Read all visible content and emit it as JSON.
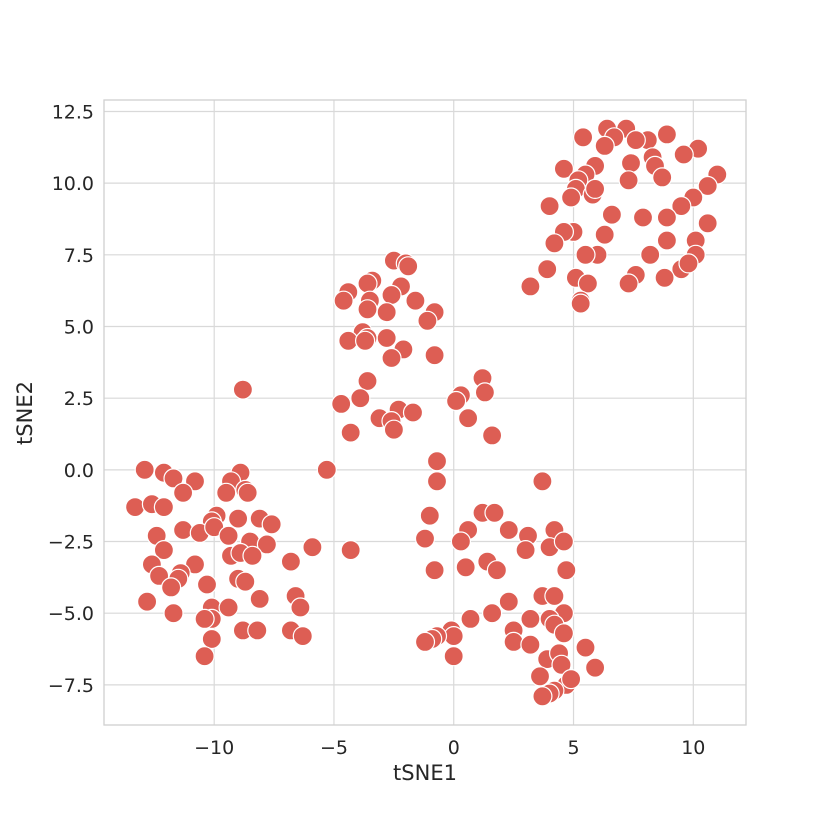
{
  "chart_data": {
    "type": "scatter",
    "title": "",
    "xlabel": "tSNE1",
    "ylabel": "tSNE2",
    "xlim": [
      -14.6,
      12.2
    ],
    "ylim": [
      -8.9,
      12.9
    ],
    "xticks": [
      {
        "value": -10,
        "label": "−10"
      },
      {
        "value": -5,
        "label": "−5"
      },
      {
        "value": 0,
        "label": "0"
      },
      {
        "value": 5,
        "label": "5"
      },
      {
        "value": 10,
        "label": "10"
      }
    ],
    "yticks": [
      {
        "value": -7.5,
        "label": "−7.5"
      },
      {
        "value": -5.0,
        "label": "−5.0"
      },
      {
        "value": -2.5,
        "label": "−2.5"
      },
      {
        "value": 0.0,
        "label": "0.0"
      },
      {
        "value": 2.5,
        "label": "2.5"
      },
      {
        "value": 5.0,
        "label": "5.0"
      },
      {
        "value": 7.5,
        "label": "7.5"
      },
      {
        "value": 10.0,
        "label": "10.0"
      },
      {
        "value": 12.5,
        "label": "12.5"
      }
    ],
    "grid": true,
    "legend": "none",
    "marker_color": "#dd5e54",
    "points": [
      [
        6.4,
        11.9
      ],
      [
        7.2,
        11.9
      ],
      [
        6.7,
        11.6
      ],
      [
        5.4,
        11.6
      ],
      [
        8.9,
        11.7
      ],
      [
        8.1,
        11.5
      ],
      [
        6.3,
        11.3
      ],
      [
        7.6,
        11.5
      ],
      [
        10.2,
        11.2
      ],
      [
        9.6,
        11.0
      ],
      [
        8.3,
        10.9
      ],
      [
        7.4,
        10.7
      ],
      [
        8.4,
        10.6
      ],
      [
        5.9,
        10.6
      ],
      [
        4.6,
        10.5
      ],
      [
        5.5,
        10.3
      ],
      [
        5.2,
        10.1
      ],
      [
        7.3,
        10.1
      ],
      [
        8.7,
        10.2
      ],
      [
        11.0,
        10.3
      ],
      [
        10.6,
        9.9
      ],
      [
        5.1,
        9.8
      ],
      [
        5.8,
        9.6
      ],
      [
        4.9,
        9.5
      ],
      [
        5.9,
        9.8
      ],
      [
        10.0,
        9.5
      ],
      [
        9.5,
        9.2
      ],
      [
        4.0,
        9.2
      ],
      [
        6.6,
        8.9
      ],
      [
        7.9,
        8.8
      ],
      [
        8.9,
        8.8
      ],
      [
        10.6,
        8.6
      ],
      [
        5.0,
        8.3
      ],
      [
        4.6,
        8.3
      ],
      [
        6.3,
        8.2
      ],
      [
        4.2,
        7.9
      ],
      [
        8.9,
        8.0
      ],
      [
        10.1,
        8.0
      ],
      [
        6.0,
        7.5
      ],
      [
        5.5,
        7.5
      ],
      [
        8.2,
        7.5
      ],
      [
        10.1,
        7.5
      ],
      [
        3.9,
        7.0
      ],
      [
        9.5,
        7.0
      ],
      [
        9.8,
        7.2
      ],
      [
        7.6,
        6.8
      ],
      [
        5.1,
        6.7
      ],
      [
        8.8,
        6.7
      ],
      [
        7.3,
        6.5
      ],
      [
        5.6,
        6.5
      ],
      [
        3.2,
        6.4
      ],
      [
        5.3,
        5.9
      ],
      [
        5.3,
        5.8
      ],
      [
        -2.5,
        7.3
      ],
      [
        -2.0,
        7.2
      ],
      [
        -1.9,
        7.1
      ],
      [
        -3.4,
        6.6
      ],
      [
        -3.6,
        6.5
      ],
      [
        -2.2,
        6.4
      ],
      [
        -4.4,
        6.2
      ],
      [
        -2.6,
        6.1
      ],
      [
        -4.6,
        5.9
      ],
      [
        -3.5,
        5.9
      ],
      [
        -1.6,
        5.9
      ],
      [
        -3.6,
        5.6
      ],
      [
        -2.8,
        5.5
      ],
      [
        -0.8,
        5.5
      ],
      [
        -1.1,
        5.2
      ],
      [
        -3.8,
        4.8
      ],
      [
        -3.6,
        4.6
      ],
      [
        -2.8,
        4.6
      ],
      [
        -4.4,
        4.5
      ],
      [
        -3.7,
        4.5
      ],
      [
        -2.1,
        4.2
      ],
      [
        -2.6,
        3.9
      ],
      [
        -0.8,
        4.0
      ],
      [
        -3.6,
        3.1
      ],
      [
        -3.9,
        2.5
      ],
      [
        -4.7,
        2.3
      ],
      [
        -2.3,
        2.1
      ],
      [
        -1.7,
        2.0
      ],
      [
        -3.1,
        1.8
      ],
      [
        -2.6,
        1.7
      ],
      [
        -2.5,
        1.4
      ],
      [
        -4.3,
        1.3
      ],
      [
        1.2,
        3.2
      ],
      [
        0.3,
        2.6
      ],
      [
        1.3,
        2.7
      ],
      [
        0.1,
        2.4
      ],
      [
        0.6,
        1.8
      ],
      [
        1.6,
        1.2
      ],
      [
        -8.8,
        2.8
      ],
      [
        -12.9,
        0.0
      ],
      [
        -12.1,
        -0.1
      ],
      [
        -8.9,
        -0.1
      ],
      [
        -11.7,
        -0.3
      ],
      [
        -10.8,
        -0.4
      ],
      [
        -9.3,
        -0.4
      ],
      [
        -8.7,
        -0.7
      ],
      [
        -13.3,
        -1.3
      ],
      [
        -12.6,
        -1.2
      ],
      [
        -11.3,
        -0.8
      ],
      [
        -9.5,
        -0.8
      ],
      [
        -8.6,
        -0.8
      ],
      [
        -12.1,
        -1.3
      ],
      [
        -9.9,
        -1.6
      ],
      [
        -10.1,
        -1.8
      ],
      [
        -9.0,
        -1.7
      ],
      [
        -8.1,
        -1.7
      ],
      [
        -7.6,
        -1.9
      ],
      [
        -11.3,
        -2.1
      ],
      [
        -10.6,
        -2.2
      ],
      [
        -10.0,
        -2.0
      ],
      [
        -9.4,
        -2.3
      ],
      [
        -12.4,
        -2.3
      ],
      [
        -8.5,
        -2.5
      ],
      [
        -7.8,
        -2.6
      ],
      [
        -12.1,
        -2.8
      ],
      [
        -9.3,
        -3.0
      ],
      [
        -8.9,
        -2.9
      ],
      [
        -8.4,
        -3.0
      ],
      [
        -6.8,
        -3.2
      ],
      [
        -12.6,
        -3.3
      ],
      [
        -10.8,
        -3.3
      ],
      [
        -11.4,
        -3.6
      ],
      [
        -12.3,
        -3.7
      ],
      [
        -11.5,
        -3.8
      ],
      [
        -10.3,
        -4.0
      ],
      [
        -9.0,
        -3.8
      ],
      [
        -8.7,
        -3.9
      ],
      [
        -11.8,
        -4.1
      ],
      [
        -8.1,
        -4.5
      ],
      [
        -6.6,
        -4.4
      ],
      [
        -12.8,
        -4.6
      ],
      [
        -10.1,
        -4.8
      ],
      [
        -9.4,
        -4.8
      ],
      [
        -6.4,
        -4.8
      ],
      [
        -11.7,
        -5.0
      ],
      [
        -10.1,
        -5.2
      ],
      [
        -10.4,
        -5.2
      ],
      [
        -8.8,
        -5.6
      ],
      [
        -8.2,
        -5.6
      ],
      [
        -6.8,
        -5.6
      ],
      [
        -10.1,
        -5.9
      ],
      [
        -6.3,
        -5.8
      ],
      [
        -10.4,
        -6.5
      ],
      [
        -5.9,
        -2.7
      ],
      [
        -4.3,
        -2.8
      ],
      [
        -5.3,
        0.0
      ],
      [
        -0.7,
        0.3
      ],
      [
        -0.7,
        -0.4
      ],
      [
        3.7,
        -0.4
      ],
      [
        -1.0,
        -1.6
      ],
      [
        1.2,
        -1.5
      ],
      [
        1.7,
        -1.5
      ],
      [
        0.6,
        -2.1
      ],
      [
        -1.2,
        -2.4
      ],
      [
        2.3,
        -2.1
      ],
      [
        3.1,
        -2.3
      ],
      [
        4.2,
        -2.1
      ],
      [
        0.3,
        -2.5
      ],
      [
        3.0,
        -2.8
      ],
      [
        4.0,
        -2.7
      ],
      [
        4.6,
        -2.5
      ],
      [
        1.4,
        -3.2
      ],
      [
        0.5,
        -3.4
      ],
      [
        -0.8,
        -3.5
      ],
      [
        1.8,
        -3.5
      ],
      [
        4.7,
        -3.5
      ],
      [
        3.7,
        -4.4
      ],
      [
        4.2,
        -4.4
      ],
      [
        2.3,
        -4.6
      ],
      [
        1.6,
        -5.0
      ],
      [
        4.6,
        -5.0
      ],
      [
        0.7,
        -5.2
      ],
      [
        3.2,
        -5.2
      ],
      [
        4.0,
        -5.2
      ],
      [
        4.2,
        -5.4
      ],
      [
        2.5,
        -5.6
      ],
      [
        -0.1,
        -5.6
      ],
      [
        4.6,
        -5.7
      ],
      [
        0.0,
        -5.8
      ],
      [
        -0.7,
        -5.8
      ],
      [
        -0.9,
        -5.9
      ],
      [
        -1.2,
        -6.0
      ],
      [
        2.5,
        -6.0
      ],
      [
        3.2,
        -6.1
      ],
      [
        5.5,
        -6.2
      ],
      [
        3.9,
        -6.6
      ],
      [
        4.4,
        -6.4
      ],
      [
        0.0,
        -6.5
      ],
      [
        4.5,
        -6.8
      ],
      [
        5.9,
        -6.9
      ],
      [
        3.6,
        -7.2
      ],
      [
        4.7,
        -7.5
      ],
      [
        4.9,
        -7.3
      ],
      [
        4.2,
        -7.7
      ],
      [
        4.0,
        -7.8
      ],
      [
        3.7,
        -7.9
      ]
    ]
  }
}
